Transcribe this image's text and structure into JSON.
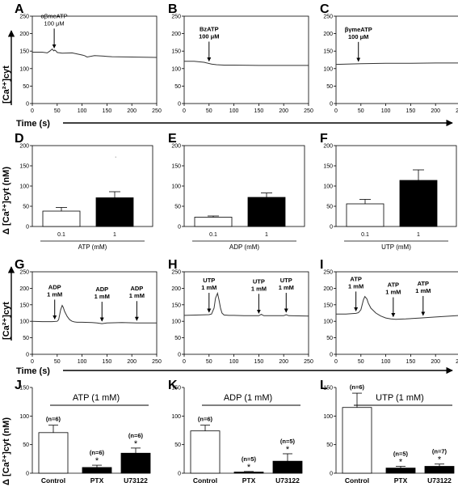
{
  "figure": {
    "y_label_top": "[Ca²⁺]cyt",
    "y_label_bar": "Δ [Ca²⁺]cyt (nM)",
    "time_label": "Time (s)",
    "dot_mark": "·",
    "colors": {
      "axis": "#000000",
      "trace": "#333333",
      "control_bar": "#ffffff",
      "treated_bar": "#000000"
    }
  },
  "chart_data": [
    {
      "panel": "A",
      "type": "line",
      "xlim": [
        0,
        250
      ],
      "ylim": [
        0,
        250
      ],
      "xticks": [
        0,
        50,
        100,
        150,
        200,
        250
      ],
      "yticks": [
        0,
        50,
        100,
        150,
        200,
        250
      ],
      "x": [
        0,
        20,
        30,
        35,
        40,
        43,
        45,
        48,
        50,
        60,
        80,
        100,
        105,
        110,
        125,
        140,
        150,
        160,
        200,
        250
      ],
      "y": [
        147,
        147,
        145,
        150,
        156,
        151,
        153,
        150,
        146,
        144,
        145,
        139,
        137,
        133,
        137,
        136,
        135,
        134,
        133,
        132
      ],
      "annotations": [
        {
          "lines": [
            "αβmeATP",
            "100 μM"
          ],
          "x": 44,
          "bold": false
        }
      ]
    },
    {
      "panel": "B",
      "type": "line",
      "xlim": [
        0,
        250
      ],
      "ylim": [
        0,
        250
      ],
      "xticks": [
        0,
        50,
        100,
        150,
        200,
        250
      ],
      "yticks": [
        0,
        50,
        100,
        150,
        200,
        250
      ],
      "x": [
        0,
        20,
        40,
        55,
        65,
        80,
        100,
        150,
        200,
        250
      ],
      "y": [
        121,
        121,
        118,
        113,
        111,
        110,
        110,
        109,
        109,
        109
      ],
      "annotations": [
        {
          "lines": [
            "BzATP",
            "100 μM"
          ],
          "x": 50,
          "bold": true
        }
      ]
    },
    {
      "panel": "C",
      "type": "line",
      "xlim": [
        0,
        250
      ],
      "ylim": [
        0,
        250
      ],
      "xticks": [
        0,
        50,
        100,
        150,
        200,
        250
      ],
      "yticks": [
        0,
        50,
        100,
        150,
        200,
        250
      ],
      "x": [
        0,
        50,
        100,
        150,
        200,
        250
      ],
      "y": [
        112,
        114,
        115,
        115,
        116,
        116
      ],
      "annotations": [
        {
          "lines": [
            "βγmeATP",
            "100 μM"
          ],
          "x": 45,
          "bold": true
        }
      ]
    },
    {
      "panel": "D",
      "type": "bar",
      "categories": [
        "0.1",
        "1"
      ],
      "values": [
        38,
        71
      ],
      "errors": [
        9,
        15
      ],
      "xlabel": "ATP (mM)",
      "ylim": [
        0,
        200
      ],
      "yticks": [
        0,
        50,
        100,
        150,
        200
      ]
    },
    {
      "panel": "E",
      "type": "bar",
      "categories": [
        "0.1",
        "1"
      ],
      "values": [
        23,
        72
      ],
      "errors": [
        3,
        11
      ],
      "xlabel": "ADP (mM)",
      "ylim": [
        0,
        200
      ],
      "yticks": [
        0,
        50,
        100,
        150,
        200
      ]
    },
    {
      "panel": "F",
      "type": "bar",
      "categories": [
        "0.1",
        "1"
      ],
      "values": [
        56,
        114
      ],
      "errors": [
        11,
        26
      ],
      "xlabel": "UTP (mM)",
      "ylim": [
        0,
        200
      ],
      "yticks": [
        0,
        50,
        100,
        150,
        200
      ]
    },
    {
      "panel": "G",
      "type": "line",
      "xlim": [
        0,
        250
      ],
      "ylim": [
        0,
        250
      ],
      "xticks": [
        0,
        50,
        100,
        150,
        200,
        250
      ],
      "yticks": [
        0,
        50,
        100,
        150,
        200,
        250
      ],
      "x": [
        0,
        20,
        40,
        50,
        53,
        57,
        60,
        62,
        65,
        70,
        75,
        80,
        85,
        90,
        100,
        120,
        130,
        140,
        150,
        180,
        210,
        250
      ],
      "y": [
        100,
        99,
        99,
        100,
        105,
        135,
        148,
        143,
        130,
        115,
        105,
        100,
        98,
        97,
        97,
        96,
        95,
        93,
        95,
        96,
        95,
        95
      ],
      "annotations": [
        {
          "lines": [
            "ADP",
            "1 mM"
          ],
          "x": 45,
          "bold": true
        },
        {
          "lines": [
            "ADP",
            "1 mM"
          ],
          "x": 140,
          "bold": true
        },
        {
          "lines": [
            "ADP",
            "1 mM"
          ],
          "x": 210,
          "bold": true
        }
      ]
    },
    {
      "panel": "H",
      "type": "line",
      "xlim": [
        0,
        250
      ],
      "ylim": [
        0,
        250
      ],
      "xticks": [
        0,
        50,
        100,
        150,
        200,
        250
      ],
      "yticks": [
        0,
        50,
        100,
        150,
        200,
        250
      ],
      "x": [
        0,
        30,
        50,
        55,
        60,
        63,
        67,
        70,
        73,
        76,
        80,
        90,
        100,
        120,
        150,
        155,
        160,
        200,
        205,
        210,
        250
      ],
      "y": [
        118,
        119,
        120,
        122,
        140,
        170,
        185,
        165,
        140,
        125,
        119,
        118,
        118,
        117,
        117,
        121,
        117,
        117,
        120,
        117,
        116
      ],
      "annotations": [
        {
          "lines": [
            "UTP",
            "1 mM"
          ],
          "x": 50,
          "bold": true
        },
        {
          "lines": [
            "UTP",
            "1 mM"
          ],
          "x": 150,
          "bold": true
        },
        {
          "lines": [
            "UTP",
            "1 mM"
          ],
          "x": 205,
          "bold": true
        }
      ]
    },
    {
      "panel": "I",
      "type": "line",
      "xlim": [
        0,
        250
      ],
      "ylim": [
        0,
        250
      ],
      "xticks": [
        0,
        50,
        100,
        150,
        200,
        250
      ],
      "yticks": [
        0,
        50,
        100,
        150,
        200,
        250
      ],
      "x": [
        0,
        20,
        40,
        45,
        50,
        55,
        58,
        62,
        65,
        70,
        80,
        90,
        100,
        110,
        120,
        140,
        170,
        200,
        250
      ],
      "y": [
        122,
        122,
        124,
        126,
        135,
        165,
        175,
        168,
        155,
        140,
        125,
        116,
        110,
        107,
        106,
        107,
        110,
        113,
        118
      ],
      "annotations": [
        {
          "lines": [
            "ATP",
            "1 mM"
          ],
          "x": 40,
          "bold": true
        },
        {
          "lines": [
            "ATP",
            "1 mM"
          ],
          "x": 115,
          "bold": true
        },
        {
          "lines": [
            "ATP",
            "1 mM"
          ],
          "x": 175,
          "bold": true
        }
      ]
    },
    {
      "panel": "J",
      "type": "bar",
      "title": "ATP (1 mM)",
      "categories": [
        "Control",
        "PTX",
        "U73122"
      ],
      "values": [
        71,
        10,
        35
      ],
      "errors": [
        13,
        4,
        9
      ],
      "n": [
        "(n=6)",
        "(n=6)",
        "(n=6)"
      ],
      "significant": [
        false,
        true,
        true
      ],
      "ylim": [
        0,
        150
      ],
      "yticks": [
        0,
        50,
        100,
        150
      ]
    },
    {
      "panel": "K",
      "type": "bar",
      "title": "ADP (1 mM)",
      "categories": [
        "Control",
        "PTX",
        "U73122"
      ],
      "values": [
        74,
        2,
        21
      ],
      "errors": [
        10,
        1,
        13
      ],
      "n": [
        "(n=6)",
        "(n=5)",
        "(n=5)"
      ],
      "significant": [
        false,
        true,
        true
      ],
      "ylim": [
        0,
        150
      ],
      "yticks": [
        0,
        50,
        100,
        150
      ]
    },
    {
      "panel": "L",
      "type": "bar",
      "title": "UTP (1 mM)",
      "categories": [
        "Control",
        "PTX",
        "U73122"
      ],
      "values": [
        115,
        9,
        12
      ],
      "errors": [
        25,
        3,
        4
      ],
      "n": [
        "(n=6)",
        "(n=5)",
        "(n=7)"
      ],
      "significant": [
        false,
        true,
        true
      ],
      "ylim": [
        0,
        150
      ],
      "yticks": [
        0,
        50,
        100,
        150
      ]
    }
  ]
}
